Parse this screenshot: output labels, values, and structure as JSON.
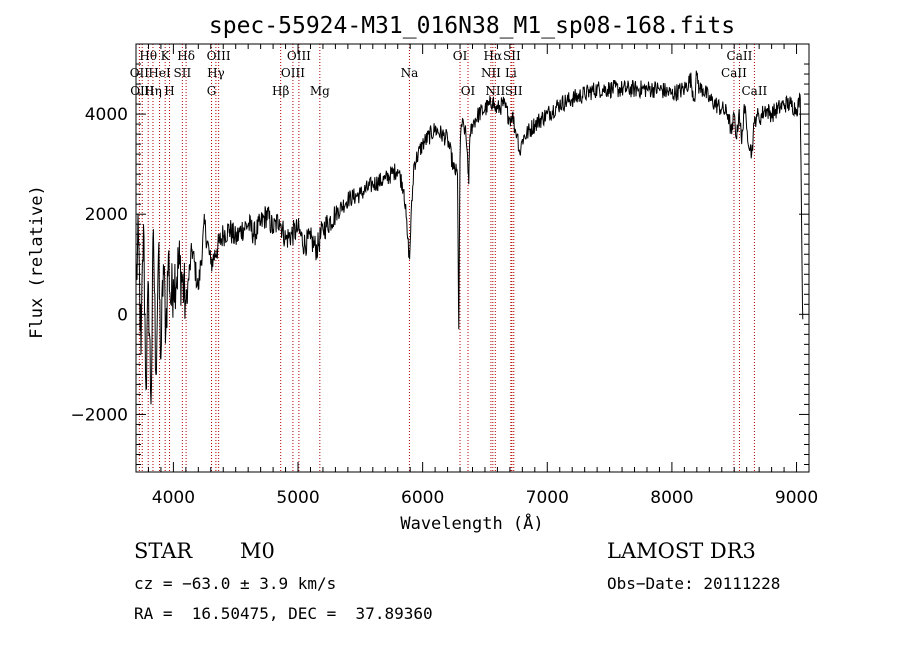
{
  "chart_data": {
    "type": "line",
    "title": "spec-55924-M31_016N38_M1_sp08-168.fits",
    "xlabel": "Wavelength (Å)",
    "ylabel": "Flux (relative)",
    "xlim": [
      3700,
      9100
    ],
    "ylim": [
      -3150,
      5400
    ],
    "xticks": [
      4000,
      5000,
      6000,
      7000,
      8000,
      9000
    ],
    "yticks": [
      -2000,
      0,
      2000,
      4000
    ],
    "xtick_labels": [
      "4000",
      "5000",
      "6000",
      "7000",
      "8000",
      "9000"
    ],
    "ytick_labels": [
      "−2000",
      "0",
      "2000",
      "4000"
    ],
    "series": [
      {
        "name": "flux",
        "x": [
          3700,
          3720,
          3740,
          3760,
          3780,
          3800,
          3820,
          3840,
          3860,
          3880,
          3900,
          3920,
          3940,
          3960,
          3980,
          4000,
          4050,
          4100,
          4150,
          4200,
          4250,
          4300,
          4350,
          4400,
          4450,
          4500,
          4550,
          4600,
          4650,
          4700,
          4750,
          4800,
          4850,
          4900,
          4950,
          5000,
          5050,
          5100,
          5150,
          5200,
          5300,
          5400,
          5500,
          5600,
          5700,
          5800,
          5850,
          5880,
          5895,
          5905,
          5930,
          6000,
          6100,
          6200,
          6250,
          6280,
          6290,
          6300,
          6310,
          6340,
          6360,
          6370,
          6380,
          6400,
          6450,
          6500,
          6550,
          6563,
          6580,
          6600,
          6650,
          6700,
          6720,
          6740,
          6760,
          6780,
          6800,
          6900,
          7000,
          7100,
          7200,
          7300,
          7400,
          7500,
          7600,
          7700,
          7800,
          7900,
          8000,
          8100,
          8150,
          8180,
          8200,
          8220,
          8250,
          8300,
          8400,
          8450,
          8480,
          8500,
          8520,
          8540,
          8560,
          8580,
          8600,
          8640,
          8660,
          8680,
          8700,
          8750,
          8800,
          8850,
          8900,
          8950,
          9000,
          9030,
          9040,
          9050
        ],
        "y": [
          600,
          1500,
          -800,
          1800,
          -1500,
          600,
          -1800,
          1700,
          -1200,
          1200,
          -900,
          1000,
          -300,
          1200,
          200,
          700,
          1000,
          200,
          1300,
          500,
          1800,
          1000,
          1300,
          1600,
          1700,
          1500,
          1700,
          1800,
          1600,
          1800,
          2000,
          1700,
          1900,
          1500,
          1600,
          1700,
          1400,
          1500,
          1300,
          1700,
          2000,
          2300,
          2400,
          2600,
          2700,
          2900,
          2500,
          1500,
          1100,
          1800,
          3000,
          3400,
          3700,
          3500,
          2900,
          2800,
          -300,
          3100,
          3800,
          3700,
          3200,
          2600,
          3600,
          3800,
          4000,
          4100,
          4200,
          4300,
          4100,
          4100,
          4200,
          3900,
          4000,
          3700,
          3600,
          3200,
          3500,
          3800,
          4000,
          4200,
          4300,
          4400,
          4500,
          4500,
          4500,
          4500,
          4500,
          4500,
          4400,
          4500,
          4700,
          4300,
          4800,
          4500,
          4500,
          4300,
          4100,
          4000,
          3600,
          4000,
          3500,
          4100,
          3400,
          4200,
          3700,
          3200,
          3800,
          4000,
          3900,
          4100,
          4000,
          4100,
          4200,
          4200,
          4100,
          4300,
          2000,
          -100
        ]
      }
    ],
    "lines": [
      {
        "name": "Hθ",
        "wavelength": 3798,
        "row": 0
      },
      {
        "name": "OII",
        "wavelength": 3727,
        "row": 1
      },
      {
        "name": "OIII",
        "wavelength": 3750,
        "row": 2
      },
      {
        "name": "Hη",
        "wavelength": 3836,
        "row": 2
      },
      {
        "name": "HeI",
        "wavelength": 3889,
        "row": 1
      },
      {
        "name": "K",
        "wavelength": 3934,
        "row": 0
      },
      {
        "name": "H",
        "wavelength": 3969,
        "row": 2
      },
      {
        "name": "SII",
        "wavelength": 4072,
        "row": 1
      },
      {
        "name": "Hδ",
        "wavelength": 4102,
        "row": 0
      },
      {
        "name": "G",
        "wavelength": 4306,
        "row": 2
      },
      {
        "name": "OIII",
        "wavelength": 4363,
        "row": 0
      },
      {
        "name": "Hγ",
        "wavelength": 4341,
        "row": 1
      },
      {
        "name": "Hβ",
        "wavelength": 4861,
        "row": 2
      },
      {
        "name": "OIII",
        "wavelength": 5007,
        "row": 0
      },
      {
        "name": "OIII",
        "wavelength": 4959,
        "row": 1
      },
      {
        "name": "Mg",
        "wavelength": 5175,
        "row": 2
      },
      {
        "name": "Na",
        "wavelength": 5894,
        "row": 1
      },
      {
        "name": "OI",
        "wavelength": 6300,
        "row": 0
      },
      {
        "name": "OI",
        "wavelength": 6364,
        "row": 2
      },
      {
        "name": "Hα",
        "wavelength": 6563,
        "row": 0
      },
      {
        "name": "NII",
        "wavelength": 6548,
        "row": 1
      },
      {
        "name": "NII",
        "wavelength": 6583,
        "row": 2
      },
      {
        "name": "SII",
        "wavelength": 6716,
        "row": 0
      },
      {
        "name": "Li",
        "wavelength": 6708,
        "row": 1
      },
      {
        "name": "SII",
        "wavelength": 6731,
        "row": 2
      },
      {
        "name": "CaII",
        "wavelength": 8542,
        "row": 0
      },
      {
        "name": "CaII",
        "wavelength": 8498,
        "row": 1
      },
      {
        "name": "CaII",
        "wavelength": 8662,
        "row": 2
      }
    ]
  },
  "info": {
    "class": "STAR",
    "subclass": "M0",
    "survey": "LAMOST DR3",
    "cz": "cz = −63.0 ± 3.9 km/s",
    "obs_date": "Obs−Date: 20111228",
    "radec": "RA =  16.50475, DEC =  37.89360"
  },
  "colors": {
    "background": "#ffffff",
    "foreground": "#000000",
    "line_marker": "#b30000"
  }
}
